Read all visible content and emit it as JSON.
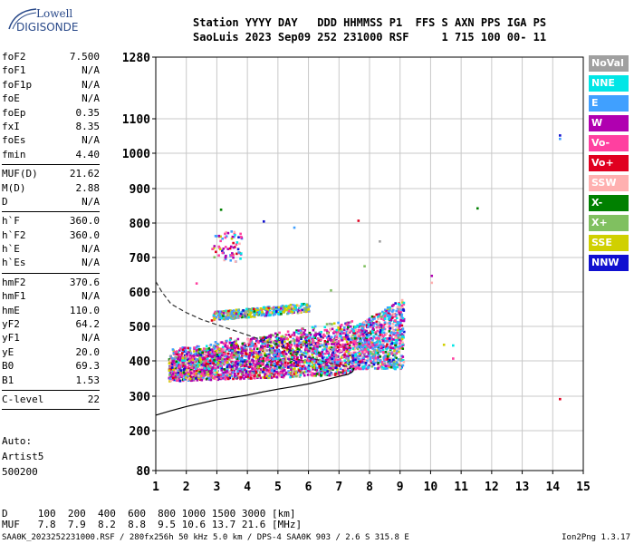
{
  "logo": {
    "line1": "Lowell",
    "line2": "DIGISONDE"
  },
  "header": {
    "line1": "Station YYYY DAY   DDD HHMMSS P1  FFS S AXN PPS IGA PS",
    "line2": "SaoLuis 2023 Sep09 252 231000 RSF     1 715 100 00- 11"
  },
  "params": [
    {
      "name": "foF2",
      "value": "7.500"
    },
    {
      "name": "foF1",
      "value": "N/A"
    },
    {
      "name": "foF1p",
      "value": "N/A"
    },
    {
      "name": "foE",
      "value": "N/A"
    },
    {
      "name": "foEp",
      "value": "0.35"
    },
    {
      "name": "fxI",
      "value": "8.35"
    },
    {
      "name": "foEs",
      "value": "N/A"
    },
    {
      "name": "fmin",
      "value": "4.40"
    },
    {
      "sep": true
    },
    {
      "name": "MUF(D)",
      "value": "21.62"
    },
    {
      "name": "M(D)",
      "value": "2.88"
    },
    {
      "name": "D",
      "value": "N/A"
    },
    {
      "sep": true
    },
    {
      "name": "h`F",
      "value": "360.0"
    },
    {
      "name": "h`F2",
      "value": "360.0"
    },
    {
      "name": "h`E",
      "value": "N/A"
    },
    {
      "name": "h`Es",
      "value": "N/A"
    },
    {
      "sep": true
    },
    {
      "name": "hmF2",
      "value": "370.6"
    },
    {
      "name": "hmF1",
      "value": "N/A"
    },
    {
      "name": "hmE",
      "value": "110.0"
    },
    {
      "name": "yF2",
      "value": "64.2"
    },
    {
      "name": "yF1",
      "value": "N/A"
    },
    {
      "name": "yE",
      "value": "20.0"
    },
    {
      "name": "B0",
      "value": "69.3"
    },
    {
      "name": "B1",
      "value": "1.53"
    },
    {
      "sep": true
    },
    {
      "name": "C-level",
      "value": "22"
    },
    {
      "sep": true
    }
  ],
  "autoscale": {
    "line1": "Auto:",
    "line2": "Artist5",
    "line3": "500200"
  },
  "legend": [
    {
      "label": "NoVal",
      "color": "#a0a0a0"
    },
    {
      "label": "NNE",
      "color": "#00e6e6"
    },
    {
      "label": "E",
      "color": "#40a0ff"
    },
    {
      "label": "W",
      "color": "#b000b0"
    },
    {
      "label": "Vo-",
      "color": "#ff40a0"
    },
    {
      "label": "Vo+",
      "color": "#e00020"
    },
    {
      "label": "SSW",
      "color": "#ffb0b0"
    },
    {
      "label": "X-",
      "color": "#008000"
    },
    {
      "label": "X+",
      "color": "#80c060"
    },
    {
      "label": "SSE",
      "color": "#d0d000"
    },
    {
      "label": "NNW",
      "color": "#1010d0"
    }
  ],
  "muf_table": {
    "d_row": "D     100  200  400  600  800 1000 1500 3000 [km]",
    "muf_row": "MUF   7.8  7.9  8.2  8.8  9.5 10.6 13.7 21.6 [MHz]"
  },
  "footer": {
    "left": "SAA0K_2023252231000.RSF / 280fx256h 50 kHz 5.0 km / DPS-4 SAA0K 903 / 2.6 S 315.8 E",
    "right": "Ion2Png 1.3.17"
  },
  "chart_data": {
    "type": "scatter",
    "title": "",
    "xlabel": "",
    "ylabel": "",
    "xlim": [
      1,
      15
    ],
    "ylim": [
      80,
      1280
    ],
    "y_scale": "ionogram (nonlinear)",
    "x_ticks": [
      "1",
      "2",
      "3",
      "4",
      "5",
      "6",
      "7",
      "8",
      "9",
      "10",
      "11",
      "12",
      "13",
      "14",
      "15"
    ],
    "y_ticks": [
      "80",
      "200",
      "300",
      "400",
      "500",
      "600",
      "700",
      "800",
      "900",
      "1000",
      "1100",
      "1280"
    ],
    "grid": true,
    "legend_position": "right",
    "traces": [
      {
        "series": "F2 O-trace cloud",
        "freq_range_MHz": [
          1.4,
          7.4
        ],
        "height_range_km": [
          340,
          500
        ]
      },
      {
        "series": "high-freq cluster",
        "freq_range_MHz": [
          7.4,
          9.1
        ],
        "height_range_km": [
          380,
          580
        ]
      },
      {
        "series": "multiple echo",
        "freq_range_MHz": [
          2.8,
          6.0
        ],
        "height_range_km": [
          520,
          580
        ]
      },
      {
        "series": "scattered points",
        "freq_range_MHz": [
          2.8,
          3.8
        ],
        "height_range_km": [
          690,
          780
        ]
      }
    ],
    "profile_line": {
      "x": [
        1.0,
        1.5,
        2.0,
        2.5,
        3.0,
        3.5,
        4.0,
        4.5,
        5.0,
        5.5,
        6.0,
        6.5,
        7.0,
        7.3,
        7.45,
        7.5
      ],
      "y": [
        245,
        258,
        270,
        280,
        290,
        296,
        303,
        312,
        320,
        327,
        335,
        345,
        356,
        362,
        370,
        380
      ]
    },
    "dashed_curve": {
      "x": [
        1.0,
        1.2,
        1.5,
        2.0,
        2.5,
        3.0,
        3.5,
        4.0,
        4.5,
        5.0,
        5.5,
        6.0,
        6.5,
        7.0,
        7.3
      ],
      "y": [
        630,
        600,
        565,
        540,
        520,
        505,
        490,
        475,
        460,
        445,
        428,
        410,
        398,
        388,
        384
      ]
    }
  }
}
